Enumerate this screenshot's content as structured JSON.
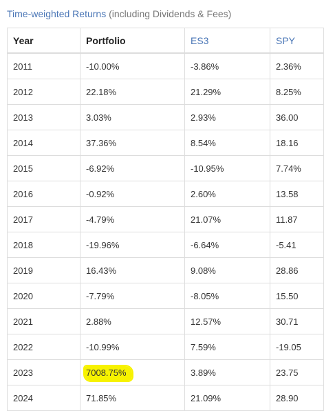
{
  "header": {
    "title": "Time-weighted Returns",
    "note": " (including Dividends & Fees)"
  },
  "table": {
    "columns": [
      "Year",
      "Portfolio",
      "ES3",
      "SPY"
    ],
    "rows": [
      {
        "year": "2011",
        "portfolio": "-10.00%",
        "es3": "-3.86%",
        "spy": "2.36%"
      },
      {
        "year": "2012",
        "portfolio": "22.18%",
        "es3": "21.29%",
        "spy": "8.25%"
      },
      {
        "year": "2013",
        "portfolio": "3.03%",
        "es3": "2.93%",
        "spy": "36.00"
      },
      {
        "year": "2014",
        "portfolio": "37.36%",
        "es3": "8.54%",
        "spy": "18.16"
      },
      {
        "year": "2015",
        "portfolio": "-6.92%",
        "es3": "-10.95%",
        "spy": "7.74%"
      },
      {
        "year": "2016",
        "portfolio": "-0.92%",
        "es3": "2.60%",
        "spy": "13.58"
      },
      {
        "year": "2017",
        "portfolio": "-4.79%",
        "es3": "21.07%",
        "spy": "11.87"
      },
      {
        "year": "2018",
        "portfolio": "-19.96%",
        "es3": "-6.64%",
        "spy": "-5.41"
      },
      {
        "year": "2019",
        "portfolio": "16.43%",
        "es3": "9.08%",
        "spy": "28.86"
      },
      {
        "year": "2020",
        "portfolio": "-7.79%",
        "es3": "-8.05%",
        "spy": "15.50"
      },
      {
        "year": "2021",
        "portfolio": "2.88%",
        "es3": "12.57%",
        "spy": "30.71"
      },
      {
        "year": "2022",
        "portfolio": "-10.99%",
        "es3": "7.59%",
        "spy": "-19.05"
      },
      {
        "year": "2023",
        "portfolio": "7008.75%",
        "es3": "3.89%",
        "spy": "23.75"
      },
      {
        "year": "2024",
        "portfolio": "71.85%",
        "es3": "21.09%",
        "spy": "28.90"
      }
    ]
  },
  "highlight_color": "#f7f200"
}
